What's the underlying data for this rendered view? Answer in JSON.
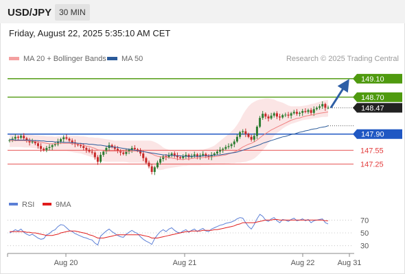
{
  "header": {
    "symbol": "USD/JPY",
    "timeframe": "30 MIN"
  },
  "datetime": "Friday, August 22, 2025 5:35:10 AM CET",
  "legend": {
    "ma20": {
      "label": "MA 20 + Bollinger Bands",
      "color": "#f08080"
    },
    "ma50": {
      "label": "MA 50",
      "color": "#2a5a9a"
    },
    "rsi": {
      "label": "RSI",
      "color": "#5b7fd6"
    },
    "ma9": {
      "label": "9MA",
      "color": "#e01c1c"
    }
  },
  "credit": "Research © 2025 Trading Central",
  "colors": {
    "up": "#2e7d32",
    "down": "#c62828",
    "resistance": "#4f9a0f",
    "pivot": "#1f57c3",
    "support": "#e33b3b",
    "last": "#222222",
    "arrow": "#2e5fa6"
  },
  "chart_data": {
    "type": "candlestick",
    "timeframe": "30 MIN",
    "x_ticks": [
      "Aug 20",
      "Aug 21",
      "Aug 22",
      "Aug 31"
    ],
    "ylim": [
      146.62,
      149.38
    ],
    "levels": [
      {
        "label": "149.10",
        "value": 149.1,
        "kind": "resistance"
      },
      {
        "label": "148.70",
        "value": 148.7,
        "kind": "resistance"
      },
      {
        "label": "148.47",
        "value": 148.47,
        "kind": "last"
      },
      {
        "label": "147.90",
        "value": 147.9,
        "kind": "pivot"
      },
      {
        "label": "147.55",
        "value": 147.55,
        "kind": "support"
      },
      {
        "label": "147.25",
        "value": 147.25,
        "kind": "support"
      }
    ],
    "forecast": {
      "from": 148.47,
      "to": 149.1,
      "direction": "up"
    },
    "close": [
      147.77,
      147.8,
      147.84,
      147.82,
      147.86,
      147.81,
      147.77,
      147.72,
      147.74,
      147.7,
      147.64,
      147.58,
      147.55,
      147.6,
      147.62,
      147.66,
      147.68,
      147.74,
      147.79,
      147.83,
      147.8,
      147.76,
      147.72,
      147.68,
      147.66,
      147.64,
      147.6,
      147.56,
      147.52,
      147.5,
      147.4,
      147.3,
      147.45,
      147.52,
      147.6,
      147.66,
      147.62,
      147.58,
      147.54,
      147.5,
      147.47,
      147.52,
      147.56,
      147.6,
      147.57,
      147.55,
      147.48,
      147.38,
      147.28,
      147.2,
      147.08,
      147.18,
      147.28,
      147.36,
      147.42,
      147.4,
      147.44,
      147.48,
      147.44,
      147.4,
      147.38,
      147.42,
      147.45,
      147.4,
      147.43,
      147.46,
      147.41,
      147.44,
      147.47,
      147.42,
      147.4,
      147.45,
      147.48,
      147.52,
      147.56,
      147.58,
      147.62,
      147.64,
      147.68,
      147.74,
      147.84,
      147.94,
      147.96,
      147.9,
      147.84,
      147.78,
      147.86,
      148.06,
      148.25,
      148.34,
      148.28,
      148.24,
      148.3,
      148.35,
      148.28,
      148.26,
      148.31,
      148.32,
      148.3,
      148.35,
      148.38,
      148.34,
      148.36,
      148.4,
      148.38,
      148.42,
      148.36,
      148.44,
      148.47,
      148.5,
      148.55,
      148.47,
      148.47
    ],
    "ma20": [
      147.76,
      147.76,
      147.76,
      147.76,
      147.76,
      147.76,
      147.75,
      147.75,
      147.75,
      147.74,
      147.73,
      147.72,
      147.71,
      147.7,
      147.69,
      147.69,
      147.69,
      147.7,
      147.7,
      147.7,
      147.7,
      147.7,
      147.69,
      147.69,
      147.68,
      147.68,
      147.66,
      147.64,
      147.63,
      147.61,
      147.59,
      147.56,
      147.55,
      147.54,
      147.53,
      147.53,
      147.53,
      147.53,
      147.53,
      147.53,
      147.53,
      147.52,
      147.52,
      147.53,
      147.53,
      147.53,
      147.53,
      147.52,
      147.51,
      147.49,
      147.47,
      147.44,
      147.42,
      147.41,
      147.4,
      147.4,
      147.39,
      147.38,
      147.37,
      147.36,
      147.35,
      147.35,
      147.36,
      147.36,
      147.37,
      147.38,
      147.38,
      147.39,
      147.39,
      147.4,
      147.4,
      147.41,
      147.41,
      147.42,
      147.43,
      147.44,
      147.45,
      147.47,
      147.49,
      147.51,
      147.54,
      147.58,
      147.62,
      147.65,
      147.68,
      147.7,
      147.73,
      147.77,
      147.82,
      147.87,
      147.91,
      147.95,
      147.99,
      148.02,
      148.05,
      148.08,
      148.11,
      148.14,
      148.17,
      148.2,
      148.22,
      148.24,
      148.25,
      148.27,
      148.29,
      148.3,
      148.31,
      148.32,
      148.34,
      148.35,
      148.36,
      148.37,
      148.38
    ],
    "bb_upper": [
      147.9,
      147.9,
      147.9,
      147.89,
      147.89,
      147.89,
      147.89,
      147.88,
      147.88,
      147.87,
      147.87,
      147.86,
      147.86,
      147.85,
      147.85,
      147.85,
      147.84,
      147.85,
      147.85,
      147.86,
      147.86,
      147.86,
      147.86,
      147.86,
      147.86,
      147.85,
      147.85,
      147.84,
      147.83,
      147.83,
      147.82,
      147.82,
      147.81,
      147.8,
      147.79,
      147.78,
      147.77,
      147.76,
      147.76,
      147.76,
      147.76,
      147.76,
      147.76,
      147.76,
      147.76,
      147.76,
      147.76,
      147.76,
      147.76,
      147.76,
      147.75,
      147.73,
      147.7,
      147.66,
      147.61,
      147.58,
      147.56,
      147.55,
      147.55,
      147.55,
      147.55,
      147.55,
      147.54,
      147.54,
      147.54,
      147.55,
      147.55,
      147.56,
      147.56,
      147.58,
      147.6,
      147.62,
      147.65,
      147.7,
      147.75,
      147.8,
      147.85,
      147.9,
      147.96,
      148.02,
      148.1,
      148.2,
      148.32,
      148.42,
      148.5,
      148.56,
      148.6,
      148.63,
      148.65,
      148.66,
      148.67,
      148.67,
      148.66,
      148.65,
      148.62,
      148.6,
      148.58,
      148.55,
      148.52,
      148.5,
      148.5,
      148.5,
      148.5,
      148.51,
      148.52,
      148.53,
      148.55,
      148.56,
      148.58,
      148.6,
      148.62,
      148.63,
      148.64
    ],
    "bb_lower": [
      147.62,
      147.62,
      147.62,
      147.62,
      147.62,
      147.61,
      147.61,
      147.61,
      147.6,
      147.59,
      147.58,
      147.57,
      147.56,
      147.55,
      147.54,
      147.53,
      147.53,
      147.53,
      147.53,
      147.53,
      147.53,
      147.52,
      147.51,
      147.5,
      147.49,
      147.48,
      147.46,
      147.44,
      147.42,
      147.4,
      147.37,
      147.34,
      147.32,
      147.31,
      147.3,
      147.3,
      147.3,
      147.3,
      147.3,
      147.3,
      147.3,
      147.29,
      147.28,
      147.28,
      147.28,
      147.28,
      147.28,
      147.27,
      147.26,
      147.24,
      147.2,
      147.16,
      147.13,
      147.12,
      147.13,
      147.15,
      147.16,
      147.17,
      147.18,
      147.19,
      147.2,
      147.21,
      147.21,
      147.22,
      147.22,
      147.22,
      147.22,
      147.22,
      147.23,
      147.23,
      147.23,
      147.24,
      147.24,
      147.25,
      147.25,
      147.25,
      147.26,
      147.26,
      147.27,
      147.27,
      147.28,
      147.28,
      147.29,
      147.3,
      147.32,
      147.34,
      147.37,
      147.42,
      147.48,
      147.55,
      147.62,
      147.7,
      147.78,
      147.86,
      147.92,
      147.97,
      148.02,
      148.06,
      148.09,
      148.12,
      148.14,
      148.16,
      148.18,
      148.2,
      148.21,
      148.22,
      148.23,
      148.24,
      148.25,
      148.26,
      148.27,
      148.27,
      148.28
    ],
    "ma50": [
      147.78,
      147.78,
      147.77,
      147.77,
      147.77,
      147.77,
      147.77,
      147.77,
      147.76,
      147.76,
      147.76,
      147.75,
      147.75,
      147.74,
      147.74,
      147.74,
      147.73,
      147.73,
      147.73,
      147.72,
      147.72,
      147.72,
      147.71,
      147.71,
      147.7,
      147.7,
      147.69,
      147.69,
      147.68,
      147.68,
      147.67,
      147.66,
      147.66,
      147.65,
      147.64,
      147.63,
      147.62,
      147.62,
      147.61,
      147.6,
      147.59,
      147.58,
      147.57,
      147.56,
      147.55,
      147.54,
      147.53,
      147.52,
      147.51,
      147.5,
      147.49,
      147.48,
      147.47,
      147.46,
      147.45,
      147.45,
      147.44,
      147.44,
      147.43,
      147.43,
      147.43,
      147.42,
      147.42,
      147.42,
      147.42,
      147.42,
      147.42,
      147.42,
      147.43,
      147.43,
      147.43,
      147.44,
      147.44,
      147.45,
      147.45,
      147.46,
      147.47,
      147.48,
      147.49,
      147.5,
      147.51,
      147.53,
      147.55,
      147.57,
      147.59,
      147.61,
      147.63,
      147.65,
      147.67,
      147.7,
      147.72,
      147.74,
      147.76,
      147.78,
      147.8,
      147.82,
      147.84,
      147.85,
      147.87,
      147.89,
      147.9,
      147.92,
      147.94,
      147.95,
      147.97,
      147.98,
      148.0,
      148.01,
      148.02,
      148.04,
      148.05,
      148.06,
      148.08
    ],
    "rsi_ticks": [
      70,
      50,
      30
    ],
    "rsi_ylim": [
      20,
      80
    ],
    "rsi": [
      50,
      52,
      55,
      53,
      56,
      51,
      48,
      46,
      48,
      45,
      42,
      40,
      41,
      47,
      49,
      53,
      55,
      60,
      63,
      62,
      58,
      54,
      52,
      49,
      47,
      45,
      43,
      42,
      40,
      39,
      34,
      31,
      45,
      49,
      53,
      56,
      52,
      49,
      46,
      44,
      43,
      48,
      51,
      54,
      51,
      49,
      44,
      40,
      37,
      35,
      32,
      41,
      47,
      52,
      55,
      52,
      56,
      58,
      54,
      51,
      50,
      53,
      55,
      51,
      54,
      56,
      52,
      55,
      57,
      53,
      52,
      56,
      58,
      60,
      62,
      63,
      65,
      66,
      67,
      69,
      72,
      74,
      73,
      66,
      60,
      56,
      63,
      72,
      79,
      76,
      70,
      68,
      72,
      74,
      69,
      66,
      71,
      70,
      68,
      71,
      73,
      69,
      70,
      72,
      69,
      71,
      66,
      69,
      70,
      71,
      72,
      66,
      64
    ],
    "rsi_ma": [
      52,
      52,
      52,
      52,
      52,
      52,
      51,
      51,
      50,
      50,
      49,
      48,
      47,
      46,
      46,
      46,
      47,
      48,
      50,
      51,
      52,
      53,
      53,
      53,
      52,
      51,
      50,
      49,
      47,
      46,
      44,
      42,
      42,
      42,
      43,
      44,
      45,
      46,
      47,
      47,
      47,
      47,
      47,
      47,
      47,
      47,
      47,
      46,
      45,
      44,
      42,
      42,
      42,
      43,
      44,
      45,
      46,
      47,
      48,
      49,
      50,
      51,
      52,
      52,
      53,
      53,
      53,
      53,
      54,
      54,
      54,
      54,
      55,
      55,
      56,
      57,
      58,
      59,
      60,
      61,
      63,
      64,
      66,
      66,
      66,
      66,
      66,
      67,
      68,
      69,
      70,
      70,
      70,
      71,
      71,
      70,
      70,
      70,
      70,
      70,
      70,
      70,
      70,
      70,
      70,
      70,
      70,
      70,
      70,
      70,
      70,
      69,
      69
    ]
  }
}
